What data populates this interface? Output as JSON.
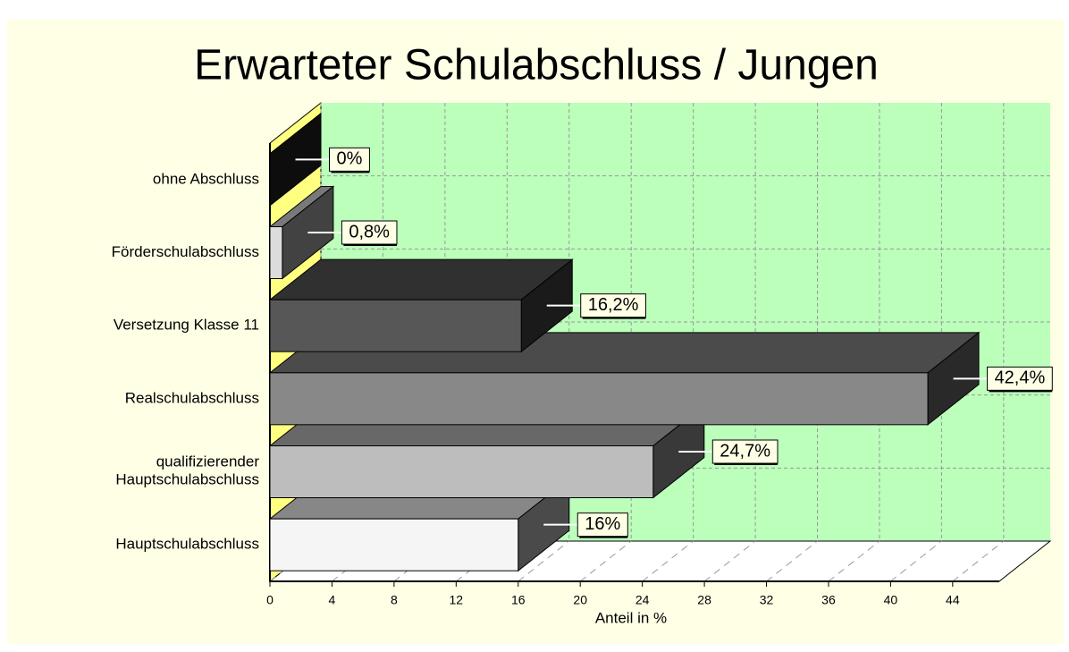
{
  "chart_data": {
    "type": "bar3d-horizontal",
    "title": "Erwarteter Schulabschluss / Jungen",
    "x_label": "Anteil in %",
    "categories": [
      "ohne Abschluss",
      "Förderschulabschluss",
      "Versetzung Klasse 11",
      "Realschulabschluss",
      "qualifizierender Hauptschulabschluss",
      "Hauptschulabschluss"
    ],
    "values": [
      0,
      0.8,
      16.2,
      42.4,
      24.7,
      16
    ],
    "value_labels": [
      "0%",
      "0,8%",
      "16,2%",
      "42,4%",
      "24,7%",
      "16%"
    ],
    "colors": [
      "#2a2a2a",
      "#dcdcdc",
      "#575757",
      "#888888",
      "#bdbdbd",
      "#f5f5f5"
    ],
    "xlim": [
      0,
      47
    ],
    "xticks": [
      0,
      4,
      8,
      12,
      16,
      20,
      24,
      28,
      32,
      36,
      40,
      44
    ],
    "grid": true
  }
}
